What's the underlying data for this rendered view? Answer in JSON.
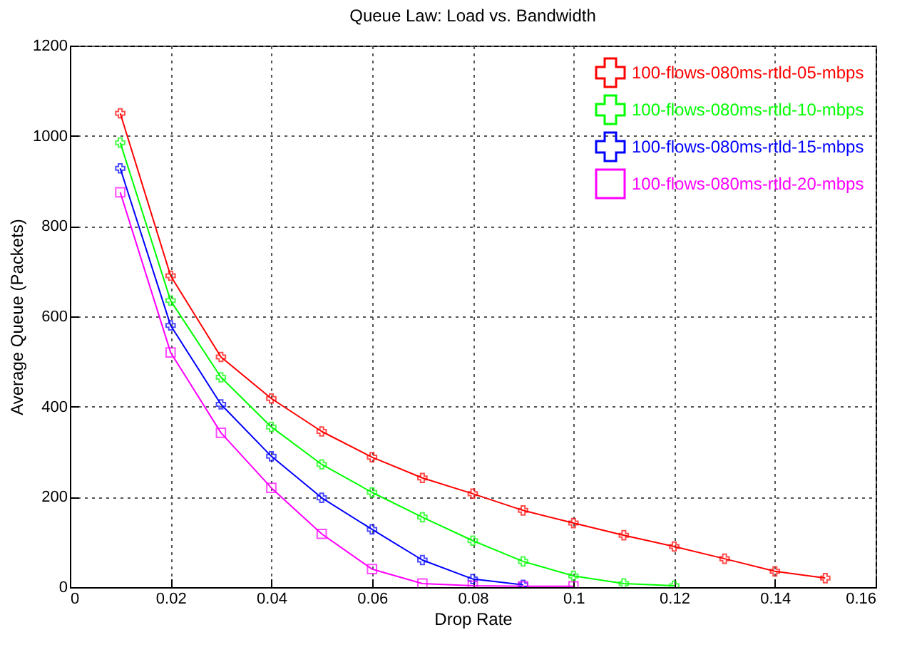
{
  "chart_data": {
    "type": "line",
    "title": "Queue Law: Load vs. Bandwidth",
    "xlabel": "Drop Rate",
    "ylabel": "Average Queue (Packets)",
    "xlim": [
      0,
      0.16
    ],
    "xticks": [
      0,
      0.02,
      0.04,
      0.06,
      0.08,
      0.1,
      0.12,
      0.14,
      0.16
    ],
    "ylim": [
      0,
      1200
    ],
    "yticks": [
      0,
      200,
      400,
      600,
      800,
      1000,
      1200
    ],
    "grid": true,
    "legend": "top right",
    "series": [
      {
        "name": "100-flows-080ms-rtld-05-mbps",
        "color": "#ff0000",
        "marker": "cross",
        "x": [
          0.01,
          0.02,
          0.03,
          0.04,
          0.05,
          0.06,
          0.07,
          0.08,
          0.09,
          0.1,
          0.11,
          0.12,
          0.13,
          0.14,
          0.15
        ],
        "values": [
          1050,
          690,
          510,
          418,
          345,
          288,
          242,
          207,
          170,
          142,
          115,
          90,
          63,
          35,
          20
        ]
      },
      {
        "name": "100-flows-080ms-rtld-10-mbps",
        "color": "#00ff00",
        "marker": "cross",
        "x": [
          0.01,
          0.02,
          0.03,
          0.04,
          0.05,
          0.06,
          0.07,
          0.08,
          0.09,
          0.1,
          0.11,
          0.12
        ],
        "values": [
          985,
          635,
          465,
          355,
          272,
          210,
          155,
          103,
          57,
          25,
          8,
          3
        ]
      },
      {
        "name": "100-flows-080ms-rtld-15-mbps",
        "color": "#0000ff",
        "marker": "cross",
        "x": [
          0.01,
          0.02,
          0.03,
          0.04,
          0.05,
          0.06,
          0.07,
          0.08,
          0.09
        ],
        "values": [
          928,
          580,
          405,
          290,
          198,
          128,
          60,
          18,
          5
        ]
      },
      {
        "name": "100-flows-080ms-rtld-20-mbps",
        "color": "#ff00ff",
        "marker": "square",
        "x": [
          0.01,
          0.02,
          0.03,
          0.04,
          0.05,
          0.06,
          0.07,
          0.08,
          0.09,
          0.1
        ],
        "values": [
          875,
          520,
          342,
          220,
          118,
          40,
          8,
          3,
          2,
          2
        ]
      }
    ]
  }
}
